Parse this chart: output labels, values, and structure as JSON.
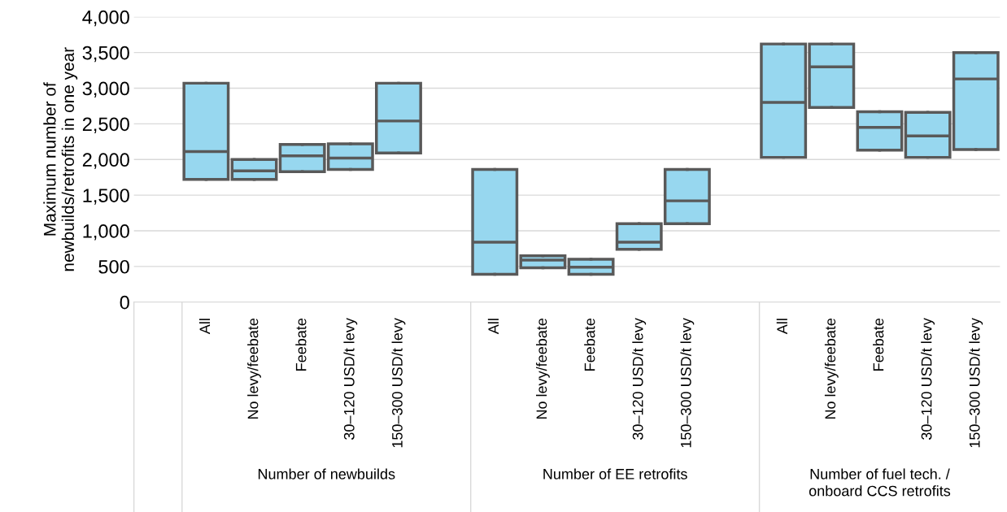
{
  "chart_data": {
    "type": "box",
    "ylabel": "Maximum number of\nnewbuilds/retrofits in one year",
    "categories": [
      null,
      "All",
      "No levy/feebate",
      "Feebate",
      "30–120 USD/t levy",
      "150–300 USD/t levy",
      null,
      "All",
      "No levy/feebate",
      "Feebate",
      "30–120 USD/t levy",
      "150–300 USD/t levy",
      null,
      "All",
      "No levy/feebate",
      "Feebate",
      "30–120 USD/t levy",
      "150–300 USD/t levy"
    ],
    "color": "#97d7ef",
    "boxes": [
      null,
      {
        "low": 1720,
        "q1": 1720,
        "median": 2110,
        "q3": 3070,
        "high": 3070
      },
      {
        "low": 1720,
        "q1": 1720,
        "median": 1840,
        "q3": 2000,
        "high": 2000
      },
      {
        "low": 1830,
        "q1": 1830,
        "median": 2050,
        "q3": 2210,
        "high": 2210
      },
      {
        "low": 1860,
        "q1": 1860,
        "median": 2020,
        "q3": 2220,
        "high": 2220
      },
      {
        "low": 2090,
        "q1": 2090,
        "median": 2540,
        "q3": 3070,
        "high": 3070
      },
      null,
      {
        "low": 390,
        "q1": 390,
        "median": 840,
        "q3": 1860,
        "high": 1860
      },
      {
        "low": 480,
        "q1": 480,
        "median": 590,
        "q3": 650,
        "high": 650
      },
      {
        "low": 390,
        "q1": 390,
        "median": 490,
        "q3": 600,
        "high": 600
      },
      {
        "low": 740,
        "q1": 740,
        "median": 840,
        "q3": 1100,
        "high": 1100
      },
      {
        "low": 1100,
        "q1": 1100,
        "median": 1420,
        "q3": 1860,
        "high": 1860
      },
      null,
      {
        "low": 2030,
        "q1": 2030,
        "median": 2800,
        "q3": 3620,
        "high": 3620
      },
      {
        "low": 2730,
        "q1": 2730,
        "median": 3300,
        "q3": 3620,
        "high": 3620
      },
      {
        "low": 2130,
        "q1": 2130,
        "median": 2450,
        "q3": 2670,
        "high": 2670
      },
      {
        "low": 2030,
        "q1": 2030,
        "median": 2330,
        "q3": 2660,
        "high": 2660
      },
      {
        "low": 2140,
        "q1": 2140,
        "median": 3130,
        "q3": 3500,
        "high": 3500
      }
    ],
    "ylim": [
      0,
      4000
    ],
    "yticks": [
      {
        "value": 0,
        "label": "0"
      },
      {
        "value": 500,
        "label": "500"
      },
      {
        "value": 1000,
        "label": "1,000"
      },
      {
        "value": 1500,
        "label": "1,500"
      },
      {
        "value": 2000,
        "label": "2,000"
      },
      {
        "value": 2500,
        "label": "2,500"
      },
      {
        "value": 3000,
        "label": "3,000"
      },
      {
        "value": 3500,
        "label": "3,500"
      },
      {
        "value": 4000,
        "label": "4,000"
      }
    ],
    "grid": "y",
    "annotations": [
      "Number of newbuilds",
      "Number of EE retrofits",
      "Number of fuel tech. /\nonboard CCS retrofits"
    ]
  }
}
